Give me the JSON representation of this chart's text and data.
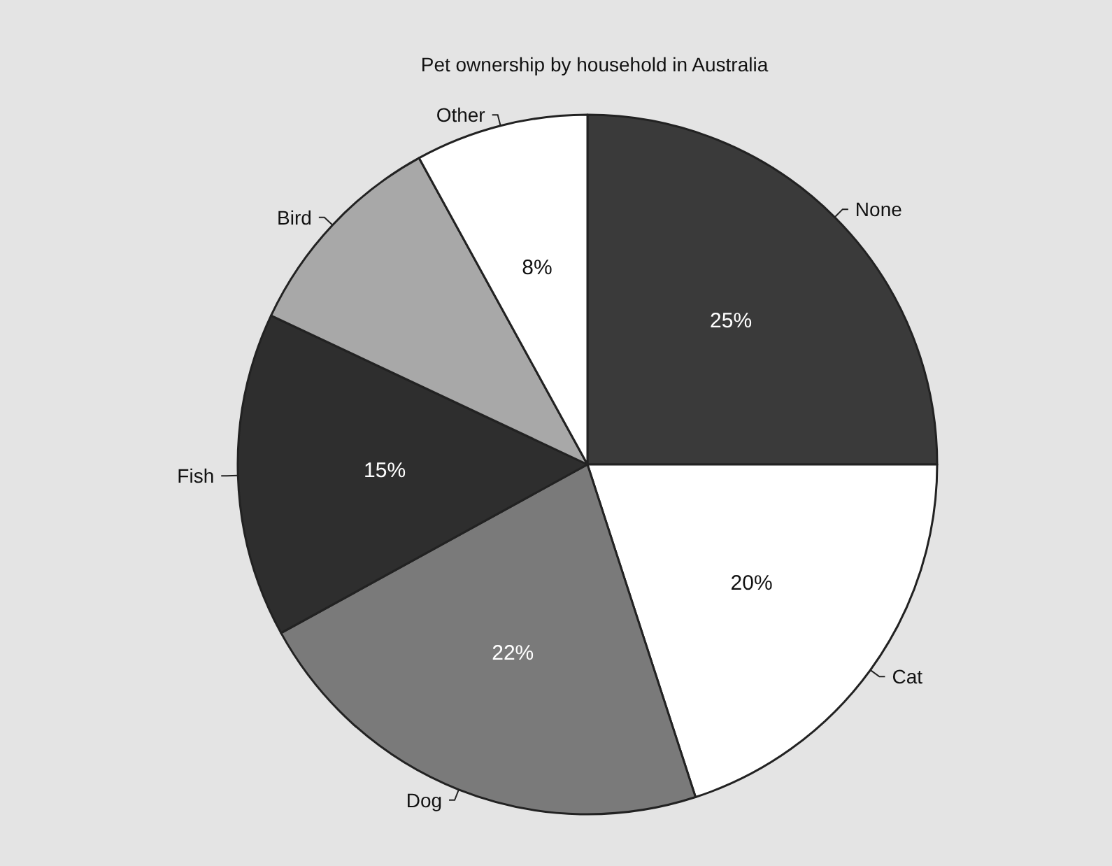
{
  "chart_data": {
    "type": "pie",
    "title": "Pet ownership by household in Australia",
    "categories": [
      "None",
      "Cat",
      "Dog",
      "Fish",
      "Bird",
      "Other"
    ],
    "values": [
      25,
      20,
      22,
      15,
      10,
      8
    ],
    "colors": [
      "#3a3a3a",
      "#ffffff",
      "#7a7a7a",
      "#2e2e2e",
      "#a8a8a8",
      "#ffffff"
    ],
    "value_labels": [
      "25%",
      "20%",
      "22%",
      "15%",
      null,
      "8%"
    ]
  }
}
